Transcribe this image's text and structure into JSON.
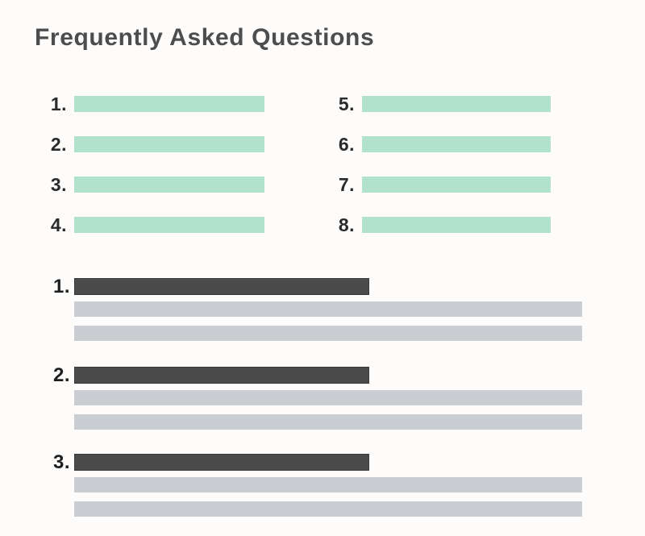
{
  "page": {
    "title": "Frequently Asked Questions"
  },
  "colors": {
    "background": "#fdfcfb",
    "title_text": "#4d4d4d",
    "number_text": "#1e1e1e",
    "question_bar_mint": "#b2e2cc",
    "answer_title_bar_dark": "#4b4b4b",
    "answer_line_gray": "#caced2"
  },
  "question_index": {
    "left_column": [
      {
        "number": "1."
      },
      {
        "number": "2."
      },
      {
        "number": "3."
      },
      {
        "number": "4."
      }
    ],
    "right_column": [
      {
        "number": "5."
      },
      {
        "number": "6."
      },
      {
        "number": "7."
      },
      {
        "number": "8."
      }
    ]
  },
  "answers": {
    "sections": [
      {
        "number": "1."
      },
      {
        "number": "2."
      },
      {
        "number": "3."
      }
    ]
  }
}
